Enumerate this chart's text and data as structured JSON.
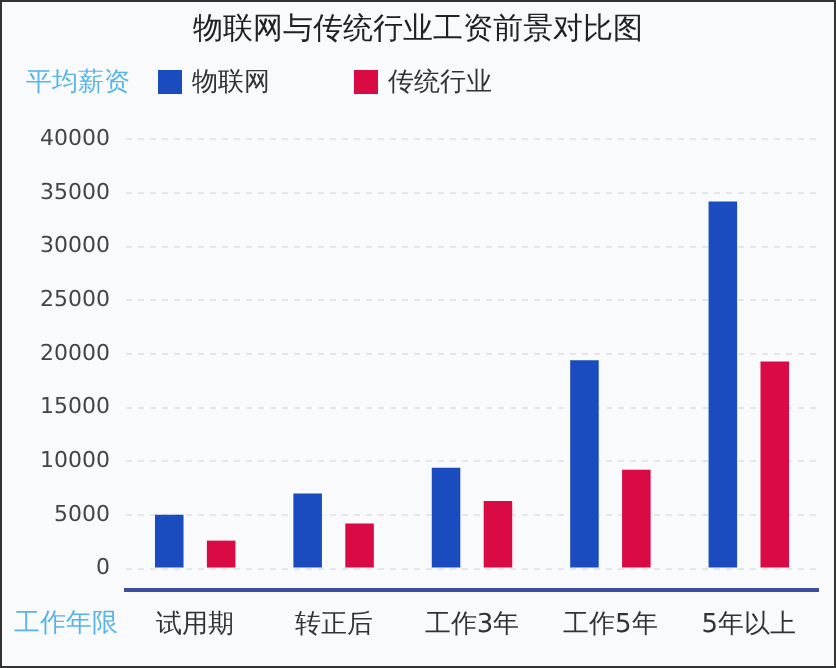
{
  "chart_data": {
    "type": "bar",
    "title": "物联网与传统行业工资前景对比图",
    "xlabel": "工作年限",
    "ylabel": "平均薪资",
    "categories": [
      "试用期",
      "转正后",
      "工作3年",
      "工作5年",
      "5年以上"
    ],
    "series": [
      {
        "name": "物联网",
        "color": "#1a4bbf",
        "values": [
          5000,
          7000,
          9400,
          19400,
          34200
        ]
      },
      {
        "name": "传统行业",
        "color": "#d90a44",
        "values": [
          2600,
          4200,
          6300,
          9200,
          19300
        ]
      }
    ],
    "ylim": [
      -2000,
      40000
    ],
    "yticks": [
      0,
      5000,
      10000,
      15000,
      20000,
      25000,
      30000,
      35000,
      40000
    ],
    "grid": "y",
    "legend": "top left"
  }
}
